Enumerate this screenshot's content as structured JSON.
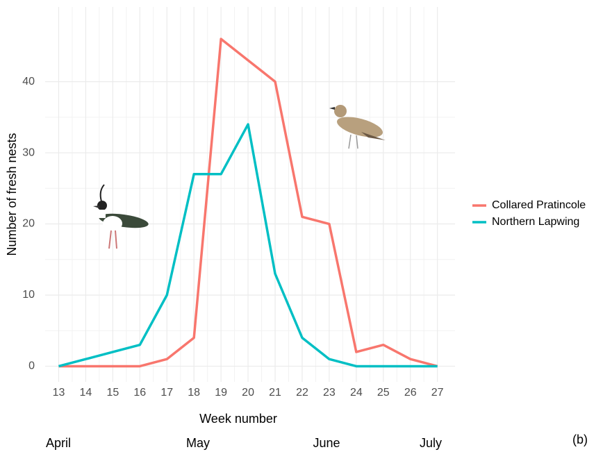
{
  "chart_data": {
    "type": "line",
    "x_label": "Week number",
    "y_label": "Number of fresh nests",
    "x": [
      13,
      14,
      15,
      16,
      17,
      18,
      19,
      20,
      21,
      22,
      23,
      24,
      25,
      26,
      27
    ],
    "series": [
      {
        "name": "Collared Pratincole",
        "color": "#F8766D",
        "values": [
          0,
          0,
          0,
          0,
          1,
          4,
          46,
          43,
          40,
          21,
          20,
          2,
          3,
          1,
          0
        ]
      },
      {
        "name": "Northern Lapwing",
        "color": "#00BFC4",
        "values": [
          0,
          1,
          2,
          3,
          10,
          27,
          27,
          34,
          13,
          4,
          1,
          0,
          0,
          0,
          0
        ]
      }
    ],
    "xlim": [
      12.5,
      27.65
    ],
    "ylim": [
      -2.2,
      50.5
    ],
    "xticks": [
      13,
      14,
      15,
      16,
      17,
      18,
      19,
      20,
      21,
      22,
      23,
      24,
      25,
      26,
      27
    ],
    "yticks": [
      0,
      10,
      20,
      30,
      40
    ],
    "grid": true,
    "legend": "right",
    "month_labels": [
      "April",
      "May",
      "June",
      "July"
    ],
    "panel_label": "(b)"
  }
}
